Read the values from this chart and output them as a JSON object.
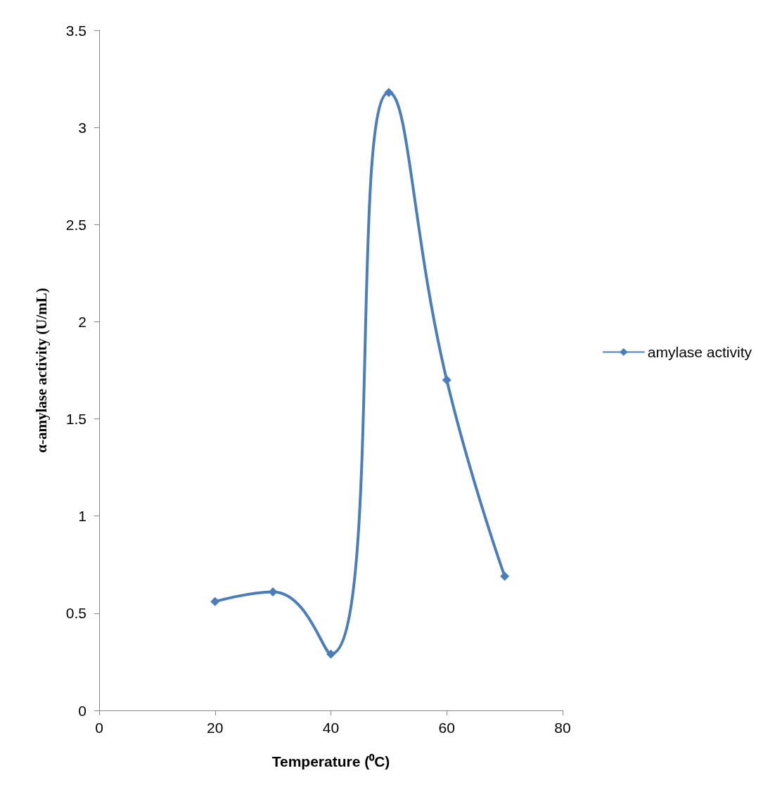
{
  "chart_data": {
    "type": "line",
    "xlabel": "Temperature (⁰C)",
    "ylabel": "α-amylase activity (U/mL)",
    "x": [
      20,
      30,
      40,
      50,
      60,
      70
    ],
    "series": [
      {
        "name": "amylase activity",
        "color": "#4a7ebb",
        "values": [
          0.56,
          0.61,
          0.29,
          3.18,
          1.7,
          0.69
        ]
      }
    ],
    "xlim": [
      0,
      80
    ],
    "xticks": [
      0,
      20,
      40,
      60,
      80
    ],
    "ylim": [
      0,
      3.5
    ],
    "yticks": [
      0,
      0.5,
      1,
      1.5,
      2,
      2.5,
      3,
      3.5
    ],
    "marker": "diamond",
    "line_style": "solid",
    "legend": "right",
    "grid": false
  }
}
